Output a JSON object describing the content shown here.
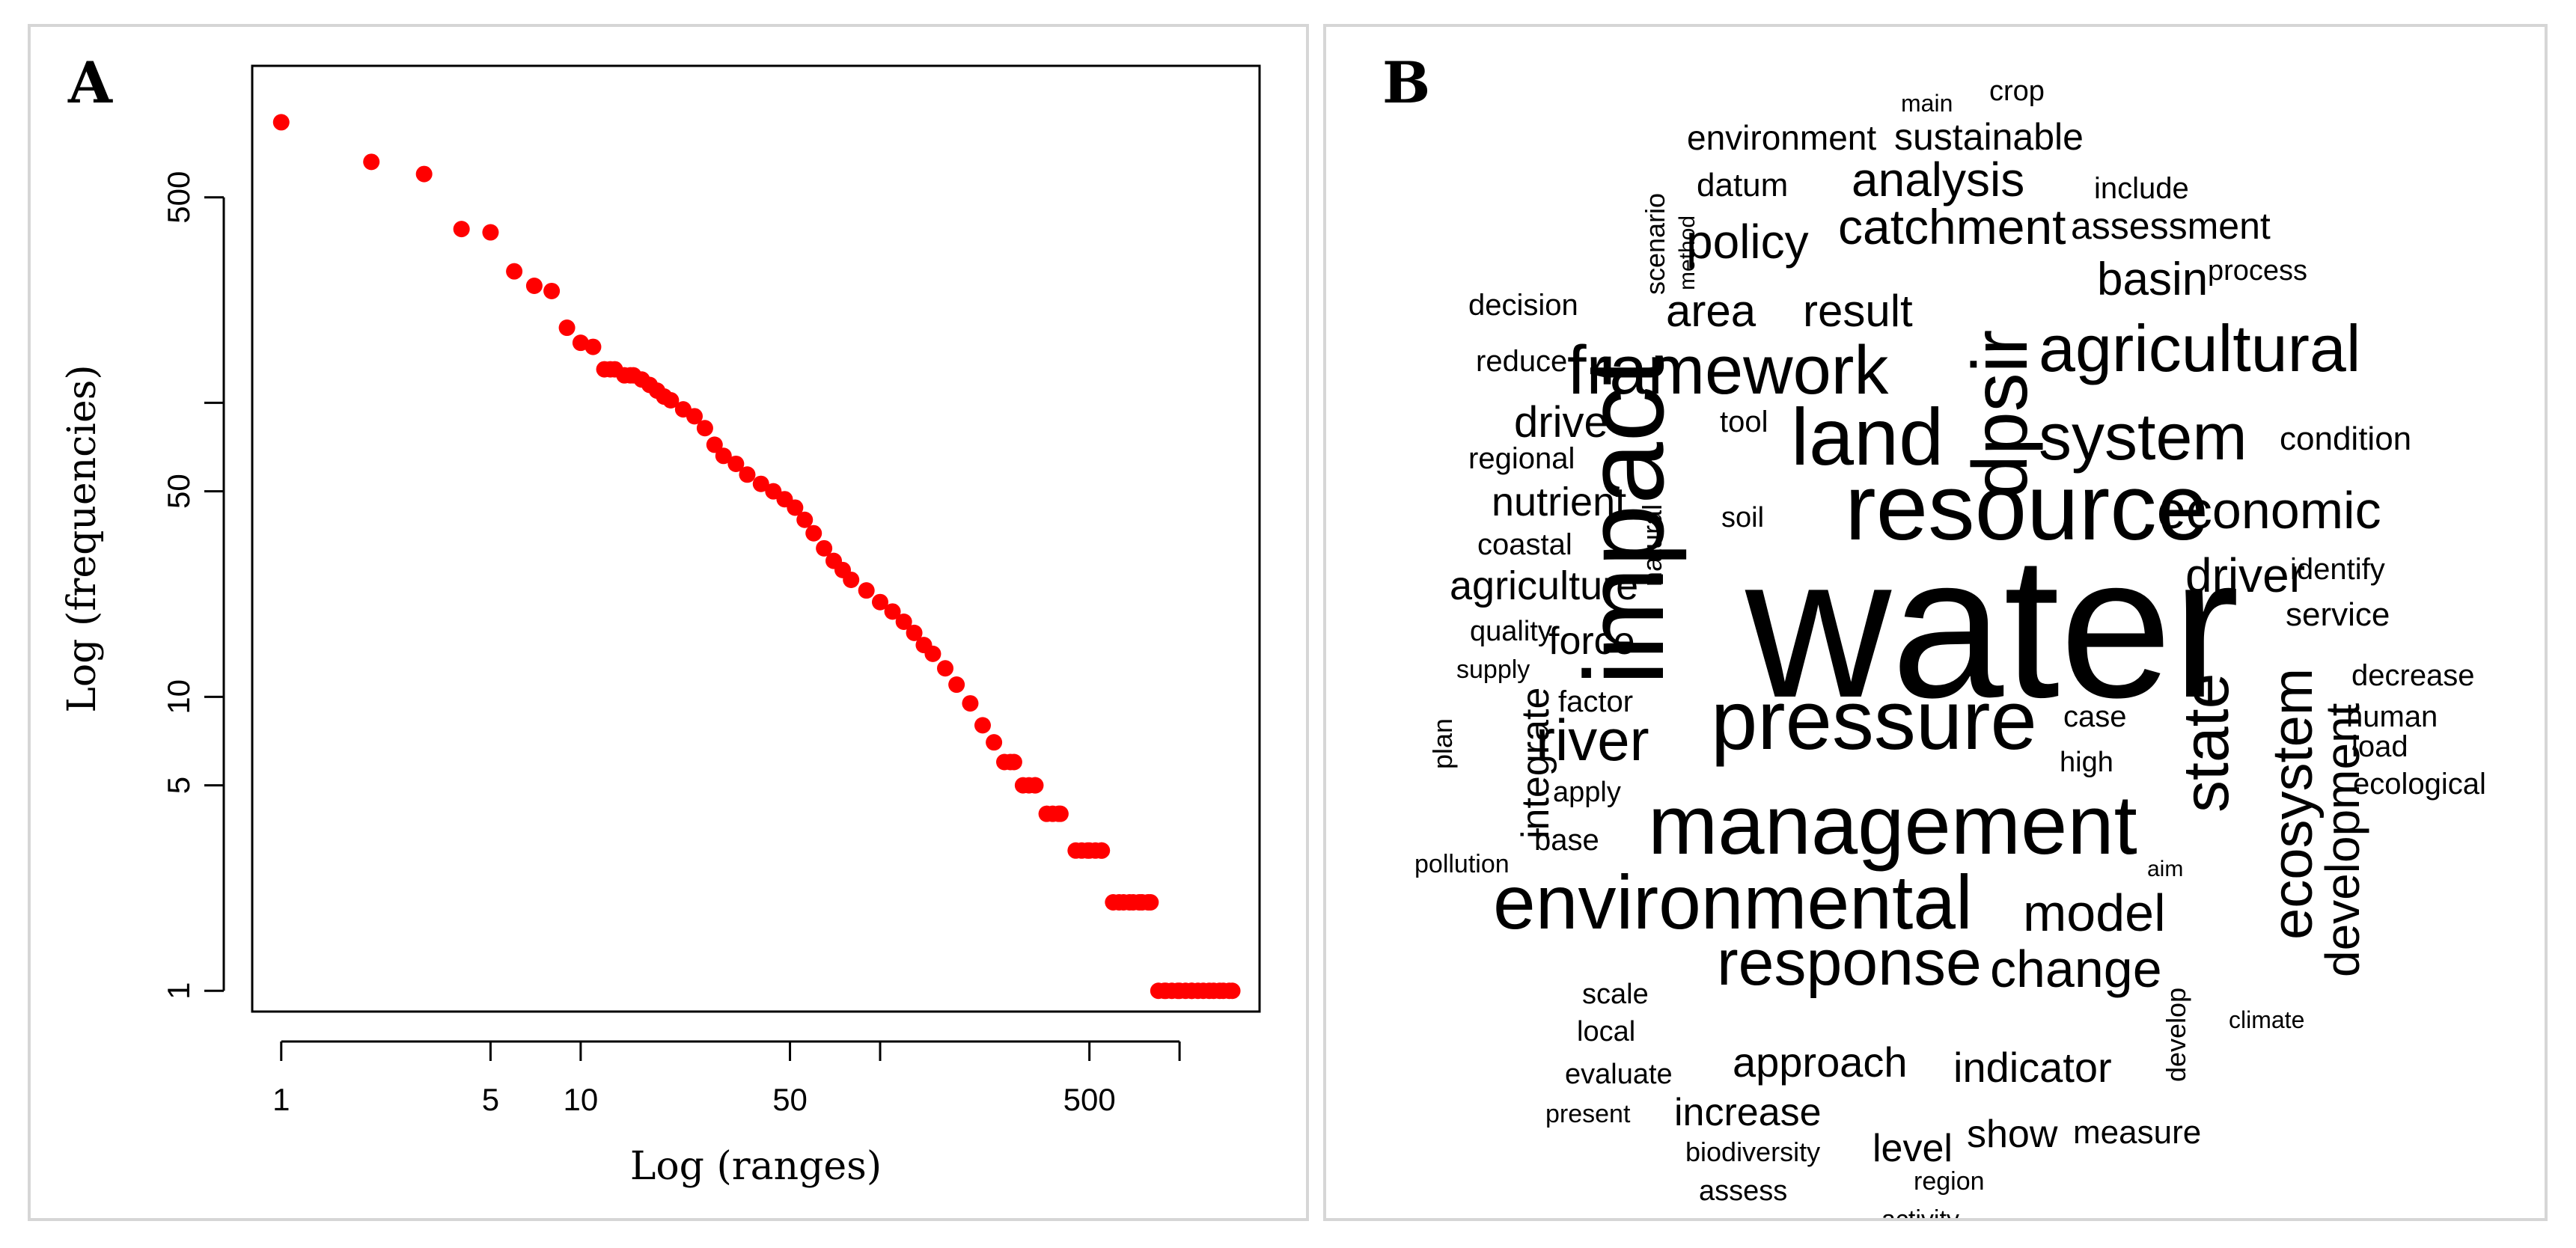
{
  "panel_a": {
    "label": "A"
  },
  "panel_b": {
    "label": "B"
  },
  "chart_data": [
    {
      "type": "scatter",
      "title": "",
      "xlabel": "Log (ranges)",
      "ylabel": "Log (frequencies)",
      "x_scale": "log",
      "y_scale": "log",
      "xlim": [
        0.8,
        1850
      ],
      "ylim": [
        0.85,
        1400
      ],
      "x_ticks": [
        1,
        5,
        10,
        50,
        100,
        500,
        1000
      ],
      "x_tick_labels": [
        "1",
        "5",
        "10",
        "50",
        "",
        "500",
        ""
      ],
      "y_ticks": [
        1,
        5,
        10,
        50,
        100,
        500
      ],
      "y_tick_labels": [
        "1",
        "5",
        "10",
        "50",
        "",
        "500"
      ],
      "marker_color": "#ff0000",
      "points": {
        "x": [
          1,
          2,
          3,
          4,
          5,
          6,
          7,
          8,
          9,
          10,
          11,
          12,
          13,
          14,
          15,
          16,
          17,
          18,
          19,
          20,
          22,
          24,
          26,
          28,
          30,
          33,
          36,
          40,
          44,
          48,
          52,
          56,
          60,
          65,
          70,
          75,
          80,
          90,
          100,
          110,
          120,
          130,
          140,
          150,
          165,
          180,
          200,
          220,
          240,
          260,
          280,
          300,
          330,
          360,
          400,
          450,
          500,
          550,
          600,
          650,
          700,
          750,
          800,
          850,
          900,
          1000,
          1100,
          1200,
          1300,
          1400,
          1500
        ],
        "y": [
          900,
          660,
          600,
          390,
          380,
          280,
          250,
          240,
          180,
          160,
          155,
          130,
          130,
          124,
          124,
          120,
          115,
          110,
          105,
          102,
          95,
          90,
          82,
          72,
          66,
          62,
          57,
          53,
          50,
          47,
          44,
          40,
          36,
          32,
          29,
          27,
          25,
          23,
          21,
          19.5,
          18,
          16.5,
          15,
          14,
          12.5,
          11,
          9.5,
          8,
          7,
          6,
          6,
          5,
          5,
          4,
          4,
          3,
          3,
          3,
          2,
          2,
          2,
          2,
          2,
          1,
          1,
          1,
          1,
          1,
          1,
          1,
          1
        ]
      }
    },
    {
      "type": "wordcloud",
      "words": [
        "water",
        "impact",
        "resource",
        "management",
        "pressure",
        "environmental",
        "dpsir",
        "land",
        "framework",
        "agricultural",
        "system",
        "response",
        "state",
        "ecosystem",
        "economic",
        "development",
        "river",
        "model",
        "change",
        "catchment",
        "analysis",
        "policy",
        "area",
        "result",
        "basin",
        "driver",
        "drive",
        "nutrient",
        "agriculture",
        "approach",
        "indicator",
        "sustainable",
        "environment",
        "assessment",
        "force",
        "integrate",
        "increase",
        "level",
        "show",
        "measure",
        "condition",
        "datum",
        "coastal",
        "identify",
        "service",
        "include",
        "process",
        "decision",
        "reduce",
        "regional",
        "quality",
        "supply",
        "factor",
        "case",
        "high",
        "apply",
        "base",
        "pollution",
        "aim",
        "scale",
        "local",
        "evaluate",
        "present",
        "biodiversity",
        "assess",
        "region",
        "activity",
        "crop",
        "main",
        "scenario",
        "method",
        "tool",
        "natural",
        "soil",
        "plan",
        "decrease",
        "human",
        "load",
        "ecological",
        "develop",
        "climate"
      ]
    }
  ]
}
